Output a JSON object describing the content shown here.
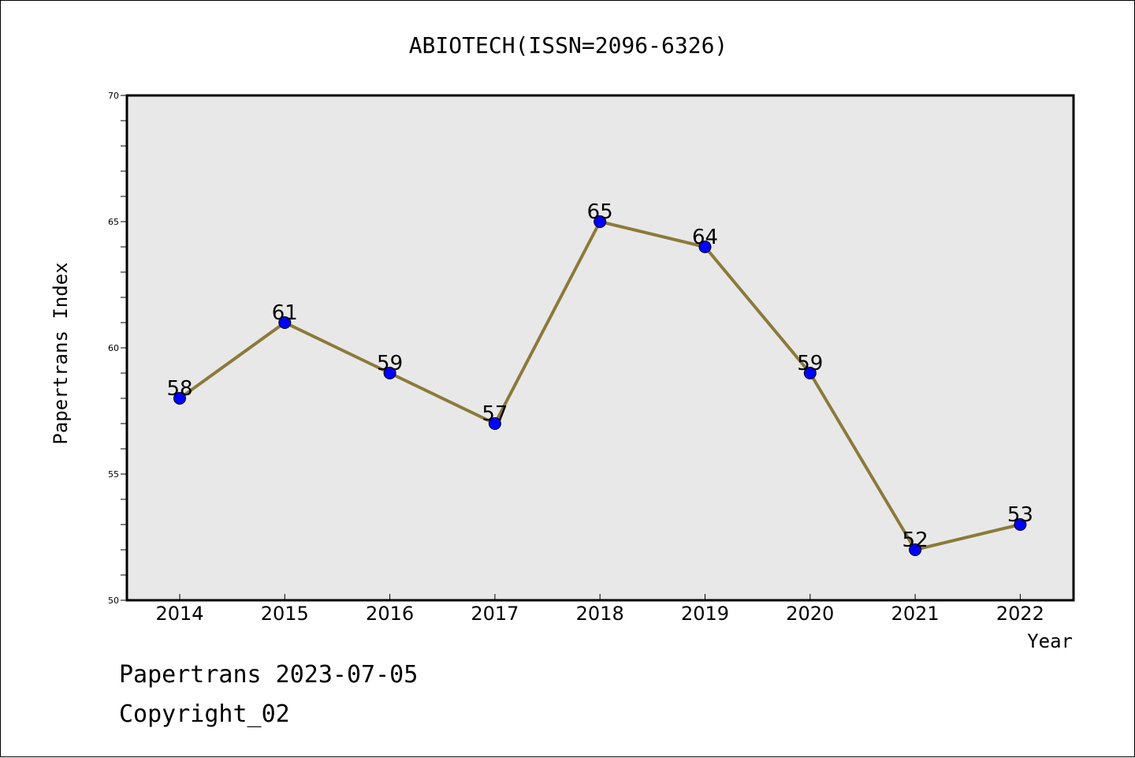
{
  "chart_data": {
    "type": "line",
    "title": "ABIOTECH(ISSN=2096-6326)",
    "xlabel": "Year",
    "ylabel": "Papertrans Index",
    "categories": [
      "2014",
      "2015",
      "2016",
      "2017",
      "2018",
      "2019",
      "2020",
      "2021",
      "2022"
    ],
    "series": [
      {
        "values": [
          58,
          61,
          59,
          57,
          65,
          64,
          59,
          52,
          53
        ]
      }
    ],
    "ylim": [
      50,
      70
    ],
    "yticks": [
      "50",
      "55",
      "60",
      "65",
      "70"
    ],
    "data_labels": [
      "58",
      "61",
      "59",
      "57",
      "65",
      "64",
      "59",
      "52",
      "53"
    ],
    "grid": false,
    "line_color": "#8b7a3a",
    "marker_color": "#0000ff",
    "plot_background": "#e8e8e8"
  },
  "footer": {
    "line1": "Papertrans 2023-07-05",
    "line2": "Copyright_02"
  }
}
